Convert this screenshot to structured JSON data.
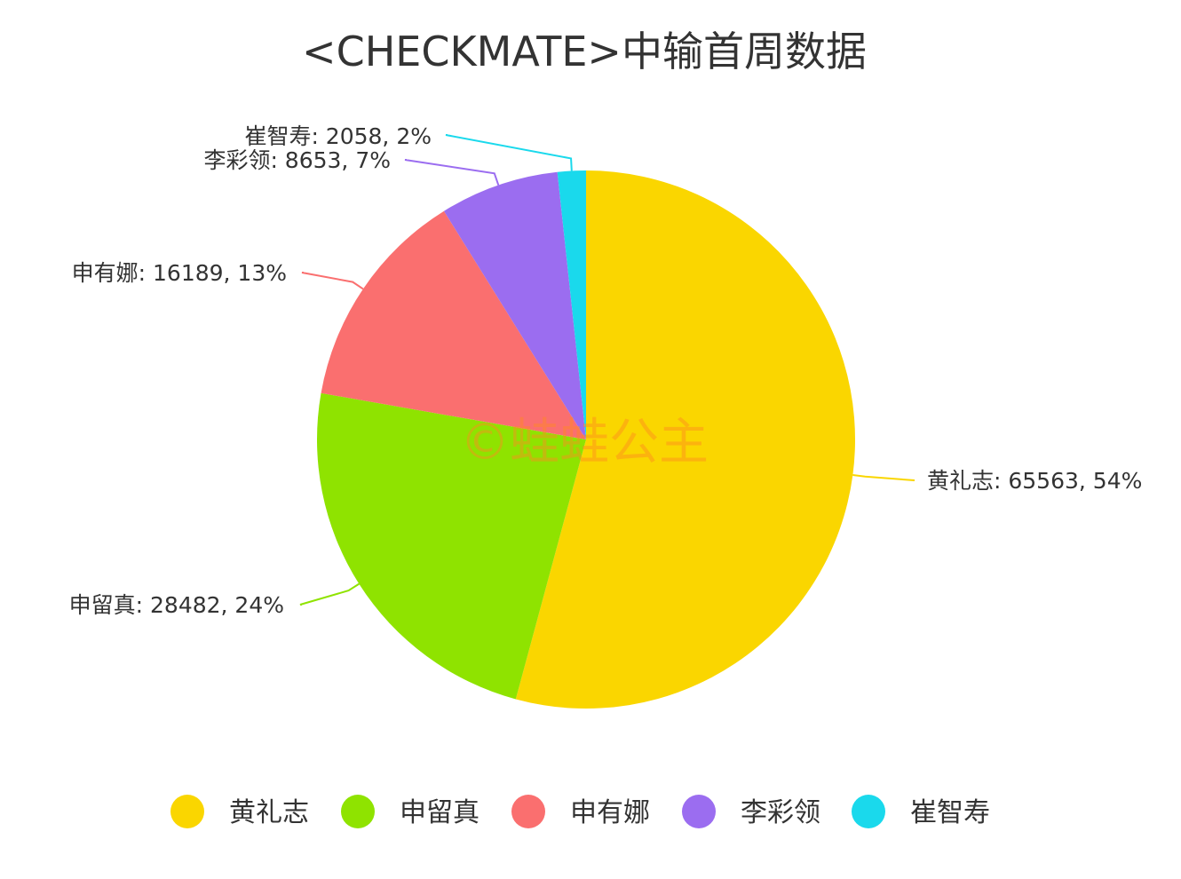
{
  "watermark": "©蛙蛙公主",
  "chart_data": {
    "type": "pie",
    "title": "<CHECKMATE>中输首周数据",
    "slices": [
      {
        "name": "黄礼志",
        "value": 65563,
        "percent": "54%",
        "label": "黄礼志: 65563, 54%",
        "color": "#fad600"
      },
      {
        "name": "申留真",
        "value": 28482,
        "percent": "24%",
        "label": "申留真: 28482, 24%",
        "color": "#8fe300"
      },
      {
        "name": "申有娜",
        "value": 16189,
        "percent": "13%",
        "label": "申有娜: 16189, 13%",
        "color": "#fa6f6f"
      },
      {
        "name": "李彩领",
        "value": 8653,
        "percent": "7%",
        "label": "李彩领: 8653, 7%",
        "color": "#9b6df0"
      },
      {
        "name": "崔智寿",
        "value": 2058,
        "percent": "2%",
        "label": "崔智寿: 2058, 2%",
        "color": "#1ad9ec"
      }
    ],
    "legend": {
      "position": "bottom",
      "items": [
        "黄礼志",
        "申留真",
        "申有娜",
        "李彩领",
        "崔智寿"
      ]
    }
  }
}
